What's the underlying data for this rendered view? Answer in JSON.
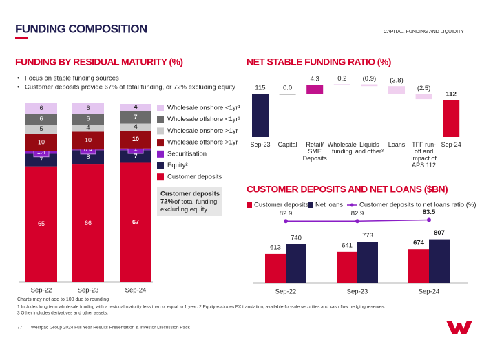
{
  "header": {
    "title": "FUNDING COMPOSITION",
    "section": "CAPITAL, FUNDING AND LIQUIDITY"
  },
  "bullets": [
    "Focus on stable funding sources",
    "Customer deposits provide 67% of total funding, or 72% excluding equity"
  ],
  "callout": {
    "title": "Customer deposits",
    "value": "72%",
    "text": "of total funding excluding equity"
  },
  "chart_data": [
    {
      "type": "stacked_bar",
      "title": "FUNDING BY RESIDUAL MATURITY (%)",
      "categories": [
        "Sep-22",
        "Sep-23",
        "Sep-24"
      ],
      "series": [
        {
          "name": "Customer deposits",
          "color": "#d5002b",
          "values": [
            65,
            66,
            67
          ]
        },
        {
          "name": "Equity²",
          "color": "#1f1c4f",
          "values": [
            7,
            8,
            7
          ]
        },
        {
          "name": "Securitisation",
          "color": "#8a1ec6",
          "values": [
            1.4,
            0.4,
            1.0
          ]
        },
        {
          "name": "Wholesale offshore >1yr",
          "color": "#960a12",
          "values": [
            10,
            10,
            10
          ]
        },
        {
          "name": "Wholesale onshore >1yr",
          "color": "#cbcbcb",
          "values": [
            5,
            4,
            4
          ]
        },
        {
          "name": "Wholesale offshore <1yr¹",
          "color": "#6b6b6b",
          "values": [
            6,
            6,
            7
          ]
        },
        {
          "name": "Wholesale onshore <1yr¹",
          "color": "#e4c6f0",
          "values": [
            6,
            6,
            4
          ]
        }
      ]
    },
    {
      "type": "waterfall",
      "title": "NET STABLE FUNDING RATIO (%)",
      "categories": [
        "Sep-23",
        "Capital",
        "Retail/ SME Deposits",
        "Wholesale funding",
        "Liquids and other³",
        "Loans",
        "TFF run-off and impact of APS 112",
        "Sep-24"
      ],
      "values": [
        115,
        0.0,
        4.3,
        0.2,
        -0.9,
        -3.8,
        -2.5,
        112
      ],
      "value_labels": [
        "115",
        "0.0",
        "4.3",
        "0.2",
        "(0.9)",
        "(3.8)",
        "(2.5)",
        "112"
      ],
      "colors": [
        "#1f1c4f",
        "#888888",
        "#c0128c",
        "#e7c2e8",
        "#f0d0ef",
        "#f0d0ef",
        "#f0d0ef",
        "#d5002b"
      ],
      "ylim": [
        94,
        121
      ]
    },
    {
      "type": "bar_line",
      "title": "CUSTOMER DEPOSITS AND NET LOANS ($BN)",
      "categories": [
        "Sep-22",
        "Sep-23",
        "Sep-24"
      ],
      "series": [
        {
          "name": "Customer deposits",
          "color": "#d5002b",
          "values": [
            613,
            641,
            674
          ]
        },
        {
          "name": "Net loans",
          "color": "#1f1c4f",
          "values": [
            740,
            773,
            807
          ]
        },
        {
          "name": "Customer deposits to net loans ratio (%)",
          "color": "#8a1ec6",
          "values": [
            82.9,
            82.9,
            83.5
          ],
          "axis": "y2"
        }
      ],
      "ylim": [
        230,
        1140
      ],
      "y2lim": [
        70,
        90
      ]
    }
  ],
  "footnotes": [
    "Charts may not add to 100 due to rounding",
    "1 Includes long term wholesale funding with a residual maturity less than or equal to 1 year. 2 Equity excludes FX translation, available-for-sale securities and cash flow hedging reserves.",
    "3 Other includes derivatives and other assets."
  ],
  "footer": {
    "page": "77",
    "text": "Westpac Group 2024 Full Year Results Presentation & Investor Discussion Pack"
  }
}
